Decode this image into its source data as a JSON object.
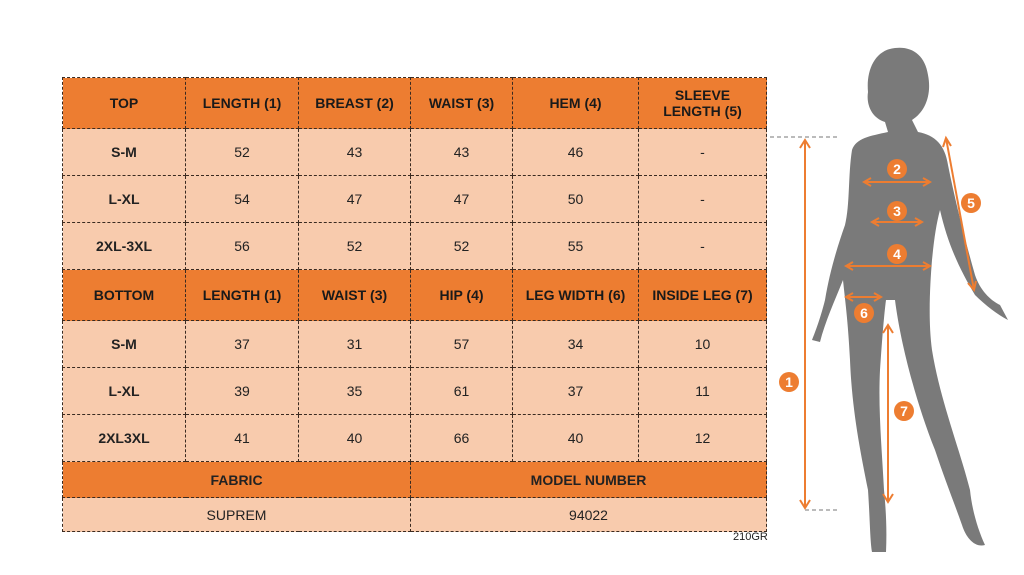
{
  "top": {
    "headers": [
      "TOP",
      "LENGTH (1)",
      "BREAST (2)",
      "WAIST (3)",
      "HEM (4)",
      "SLEEVE LENGTH (5)"
    ],
    "rows": [
      [
        "S-M",
        "52",
        "43",
        "43",
        "46",
        "-"
      ],
      [
        "L-XL",
        "54",
        "47",
        "47",
        "50",
        "-"
      ],
      [
        "2XL-3XL",
        "56",
        "52",
        "52",
        "55",
        "-"
      ]
    ]
  },
  "bottom": {
    "headers": [
      "BOTTOM",
      "LENGTH (1)",
      "WAIST (3)",
      "HIP (4)",
      "LEG WIDTH (6)",
      "INSIDE LEG (7)"
    ],
    "rows": [
      [
        "S-M",
        "37",
        "31",
        "57",
        "34",
        "10"
      ],
      [
        "L-XL",
        "39",
        "35",
        "61",
        "37",
        "11"
      ],
      [
        "2XL3XL",
        "41",
        "40",
        "66",
        "40",
        "12"
      ]
    ]
  },
  "footer": {
    "fabric_label": "FABRIC",
    "fabric_value": "SUPREM",
    "model_label": "MODEL NUMBER",
    "model_value": "94022"
  },
  "code": "210GR",
  "markers": [
    "1",
    "2",
    "3",
    "4",
    "5",
    "6",
    "7"
  ],
  "colors": {
    "header": "#ED7D31",
    "cell": "#F8CBAD",
    "silhouette": "#7a7a7a"
  }
}
